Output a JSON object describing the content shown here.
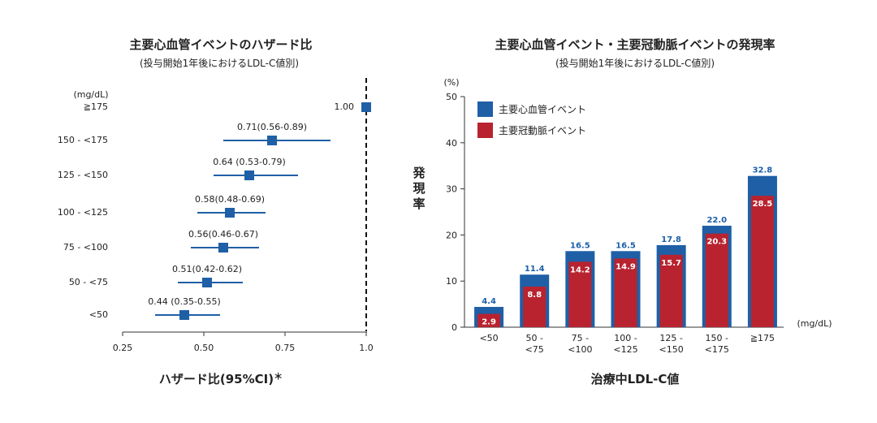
{
  "colors": {
    "blue": "#1f5fa6",
    "red": "#b8232f",
    "text": "#222222"
  },
  "chart_data": [
    {
      "type": "scatter",
      "subtype": "forest-plot",
      "title": "主要心血管イベントのハザード比",
      "subtitle": "(投与開始1年後におけるLDL-C値別)",
      "unit_label": "(mg/dL)",
      "xlabel": "ハザード比(95%CI)",
      "xlabel_suffix": "＊",
      "xlim": [
        0.25,
        1.0
      ],
      "xticks": [
        "0.25",
        "0.50",
        "0.75",
        "1.0"
      ],
      "rows": [
        {
          "category": "≧175",
          "hr": 1.0,
          "low": null,
          "high": null,
          "label": "1.00"
        },
        {
          "category": "150 - <175",
          "hr": 0.71,
          "low": 0.56,
          "high": 0.89,
          "label": "0.71(0.56-0.89)"
        },
        {
          "category": "125 - <150",
          "hr": 0.64,
          "low": 0.53,
          "high": 0.79,
          "label": "0.64 (0.53-0.79)"
        },
        {
          "category": "100 - <125",
          "hr": 0.58,
          "low": 0.48,
          "high": 0.69,
          "label": "0.58(0.48-0.69)"
        },
        {
          "category": "75 - <100",
          "hr": 0.56,
          "low": 0.46,
          "high": 0.67,
          "label": "0.56(0.46-0.67)"
        },
        {
          "category": "50 - <75",
          "hr": 0.51,
          "low": 0.42,
          "high": 0.62,
          "label": "0.51(0.42-0.62)"
        },
        {
          "category": "<50",
          "hr": 0.44,
          "low": 0.35,
          "high": 0.55,
          "label": "0.44 (0.35-0.55)"
        }
      ]
    },
    {
      "type": "bar",
      "title": "主要心血管イベント・主要冠動脈イベントの発現率",
      "subtitle": "(投与開始1年後におけるLDL-C値別)",
      "ylabel": "発現率",
      "yunit": "(%)",
      "xlabel": "治療中LDL-C値",
      "xunit": "(mg/dL)",
      "ylim": [
        0,
        50
      ],
      "yticks": [
        "0",
        "10",
        "20",
        "30",
        "40",
        "50"
      ],
      "categories": [
        [
          "<50"
        ],
        [
          "50 -",
          "<75"
        ],
        [
          "75 -",
          "<100"
        ],
        [
          "100 -",
          "<125"
        ],
        [
          "125 -",
          "<150"
        ],
        [
          "150 -",
          "<175"
        ],
        [
          "≧175"
        ]
      ],
      "series": [
        {
          "name": "主要心血管イベント",
          "values": [
            4.4,
            11.4,
            16.5,
            16.5,
            17.8,
            22.0,
            32.8
          ],
          "labels": [
            "4.4",
            "11.4",
            "16.5",
            "16.5",
            "17.8",
            "22.0",
            "32.8"
          ]
        },
        {
          "name": "主要冠動脈イベント",
          "values": [
            2.9,
            8.8,
            14.2,
            14.9,
            15.7,
            20.3,
            28.5
          ],
          "labels": [
            "2.9",
            "8.8",
            "14.2",
            "14.9",
            "15.7",
            "20.3",
            "28.5"
          ]
        }
      ]
    }
  ]
}
